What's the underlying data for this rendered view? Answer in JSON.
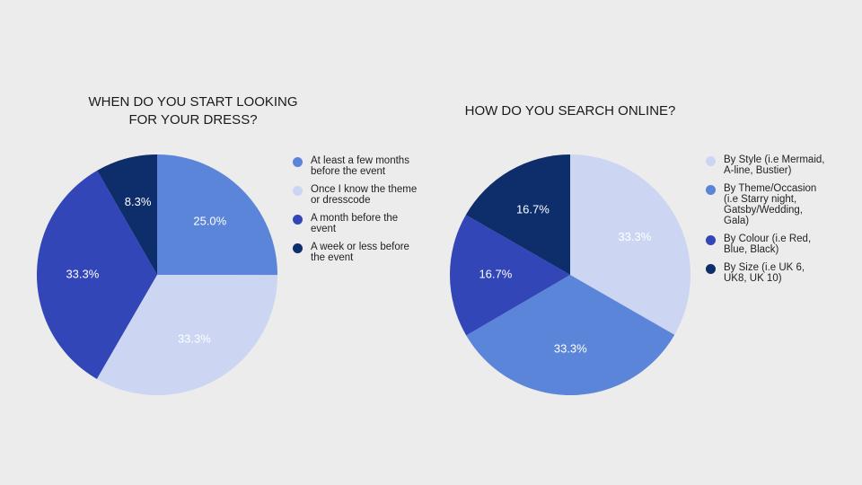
{
  "chart_data": [
    {
      "type": "pie",
      "title": "WHEN DO YOU START LOOKING\nFOR YOUR DRESS?",
      "categories": [
        "At least a few months\nbefore the event",
        "Once I know the theme\nor dresscode",
        "A month before the\nevent",
        "A week or less before\nthe event"
      ],
      "values": [
        25.0,
        33.3,
        33.3,
        8.3
      ],
      "labels": [
        "25.0%",
        "33.3%",
        "33.3%",
        "8.3%"
      ],
      "colors": [
        "#5b85d9",
        "#ccd6f3",
        "#3346b8",
        "#0d2d6b"
      ],
      "legend_position": "right"
    },
    {
      "type": "pie",
      "title": "HOW DO YOU SEARCH ONLINE?",
      "categories": [
        "By Style (i.e Mermaid,\nA-line, Bustier)",
        "By Theme/Occasion\n(i.e Starry night,\nGatsby/Wedding,\nGala)",
        "By Colour (i.e Red,\nBlue, Black)",
        "By Size (i.e UK 6,\nUK8, UK 10)"
      ],
      "values": [
        33.3,
        33.3,
        16.7,
        16.7
      ],
      "labels": [
        "33.3%",
        "33.3%",
        "16.7%",
        "16.7%"
      ],
      "colors": [
        "#ccd6f3",
        "#5b85d9",
        "#3346b8",
        "#0d2d6b"
      ],
      "legend_position": "right"
    }
  ]
}
